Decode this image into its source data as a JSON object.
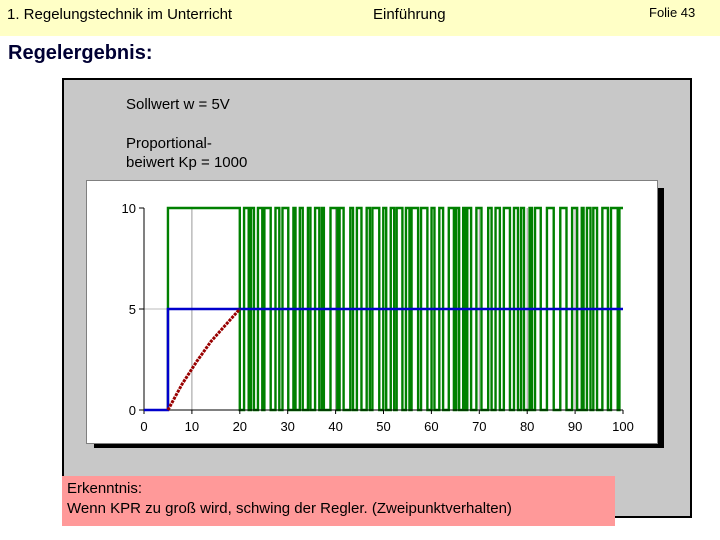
{
  "header": {
    "left": "1. Regelungstechnik im Unterricht",
    "center": "Einführung",
    "right": "Folie 43"
  },
  "title": "Regelergebnis:",
  "params": {
    "sollwert": "Sollwert w = 5V",
    "kp_line1": "Proportional-",
    "kp_line2": "beiwert Kp = 1000"
  },
  "chart_data": {
    "type": "line",
    "xlim": [
      0,
      100
    ],
    "ylim": [
      0,
      10
    ],
    "xticks": [
      "0",
      "10",
      "20",
      "30",
      "40",
      "50",
      "60",
      "70",
      "80",
      "90",
      "100"
    ],
    "yticks": [
      "0",
      "5",
      "10"
    ],
    "grid": "vertical",
    "series": [
      {
        "color": "#008000",
        "style": "oscillating 0–10 (two-position) output",
        "x": [
          5,
          20,
          100
        ],
        "y": [
          10,
          10,
          0
        ]
      },
      {
        "color": "#0000cc",
        "x": [
          0,
          5,
          5,
          100
        ],
        "y": [
          0,
          0,
          5,
          5
        ]
      },
      {
        "color": "#990000",
        "x": [
          5,
          8,
          11,
          14,
          17,
          20
        ],
        "y": [
          0,
          1.3,
          2.4,
          3.4,
          4.2,
          5
        ]
      }
    ]
  },
  "note": {
    "line1": "Erkenntnis:",
    "line2": "Wenn KPR zu groß wird, schwing der Regler. (Zweipunktverhalten)"
  }
}
